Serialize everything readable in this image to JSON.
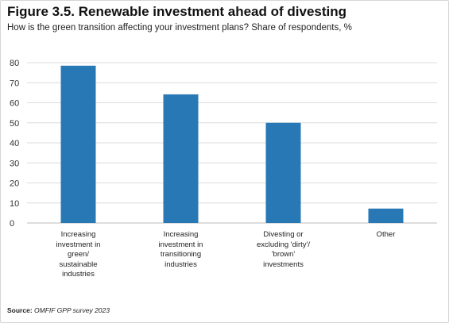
{
  "title": "Figure 3.5. Renewable investment ahead of divesting",
  "subtitle": "How is the green transition affecting your investment plans? Share of respondents, %",
  "source": {
    "label": "Source:",
    "text": "OMFIF GPP survey 2023"
  },
  "colors": {
    "bar": "#2878b5",
    "grid": "#dcdcdc"
  },
  "chart_data": {
    "type": "bar",
    "categories": [
      "Increasing investment in green/ sustainable industries",
      "Increasing investment in transitioning industries",
      "Divesting or excluding 'dirty'/ 'brown' investments",
      "Other"
    ],
    "category_lines": [
      [
        "Increasing",
        "investment in",
        "green/",
        "sustainable",
        "industries"
      ],
      [
        "Increasing",
        "investment in",
        "transitioning",
        "industries"
      ],
      [
        "Divesting or",
        "excluding 'dirty'/",
        "'brown'",
        "investments"
      ],
      [
        "Other"
      ]
    ],
    "values": [
      78.5,
      64.2,
      50.0,
      7.2
    ],
    "ylim": [
      0,
      80
    ],
    "yticks": [
      0,
      10,
      20,
      30,
      40,
      50,
      60,
      70,
      80
    ],
    "grid": true,
    "legend": "none"
  }
}
